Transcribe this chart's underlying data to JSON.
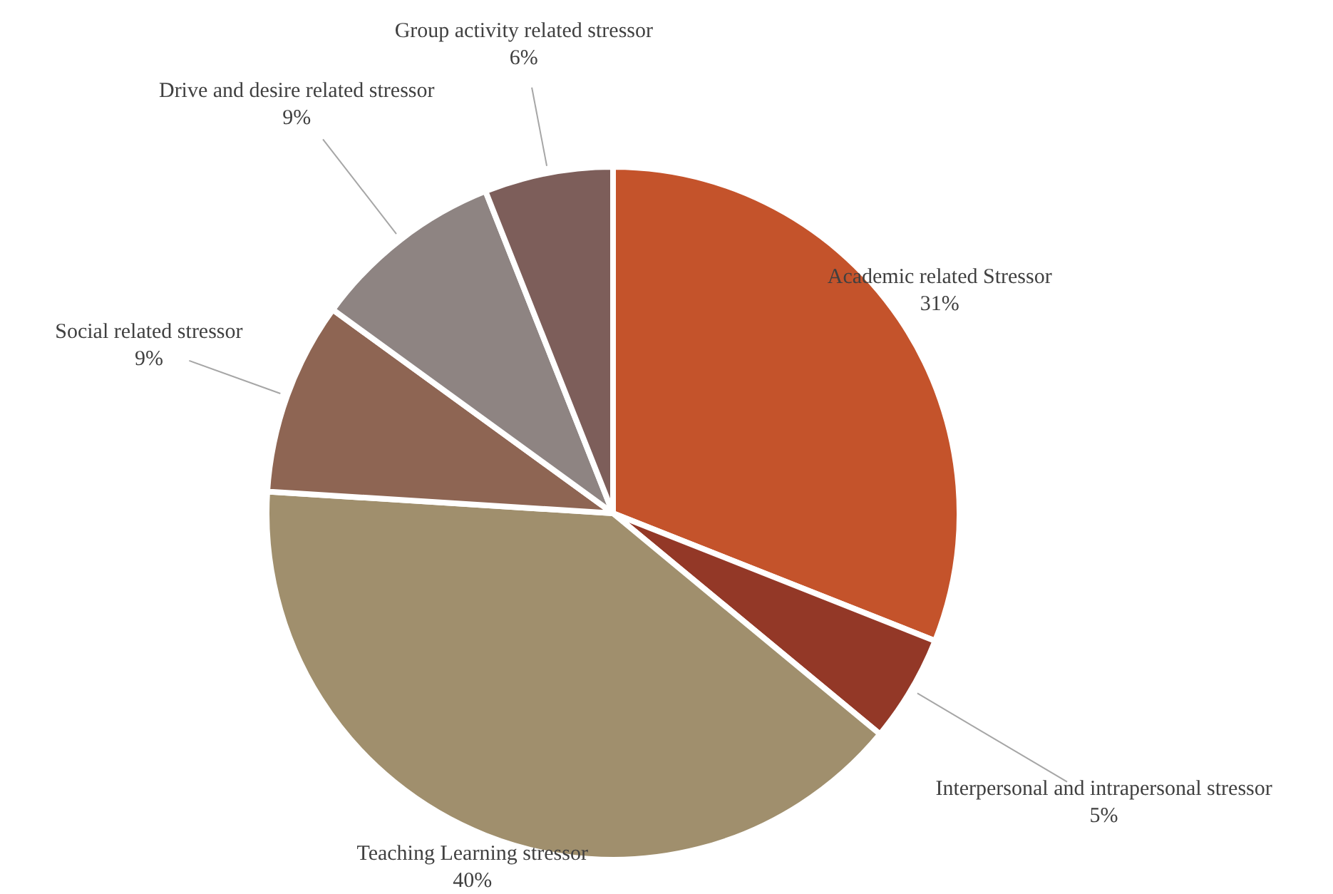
{
  "chart_data": {
    "type": "pie",
    "categories": [
      "Academic related Stressor",
      "Interpersonal and intrapersonal stressor",
      "Teaching Learning stressor",
      "Social related stressor",
      "Drive and desire related stressor",
      "Group activity related stressor"
    ],
    "values": [
      31,
      5,
      40,
      9,
      9,
      6
    ],
    "value_labels": [
      "31%",
      "5%",
      "40%",
      "9%",
      "9%",
      "6%"
    ],
    "colors": [
      "#c4532b",
      "#933827",
      "#a08f6d",
      "#8e6553",
      "#8e8482",
      "#7d5e5a"
    ]
  }
}
